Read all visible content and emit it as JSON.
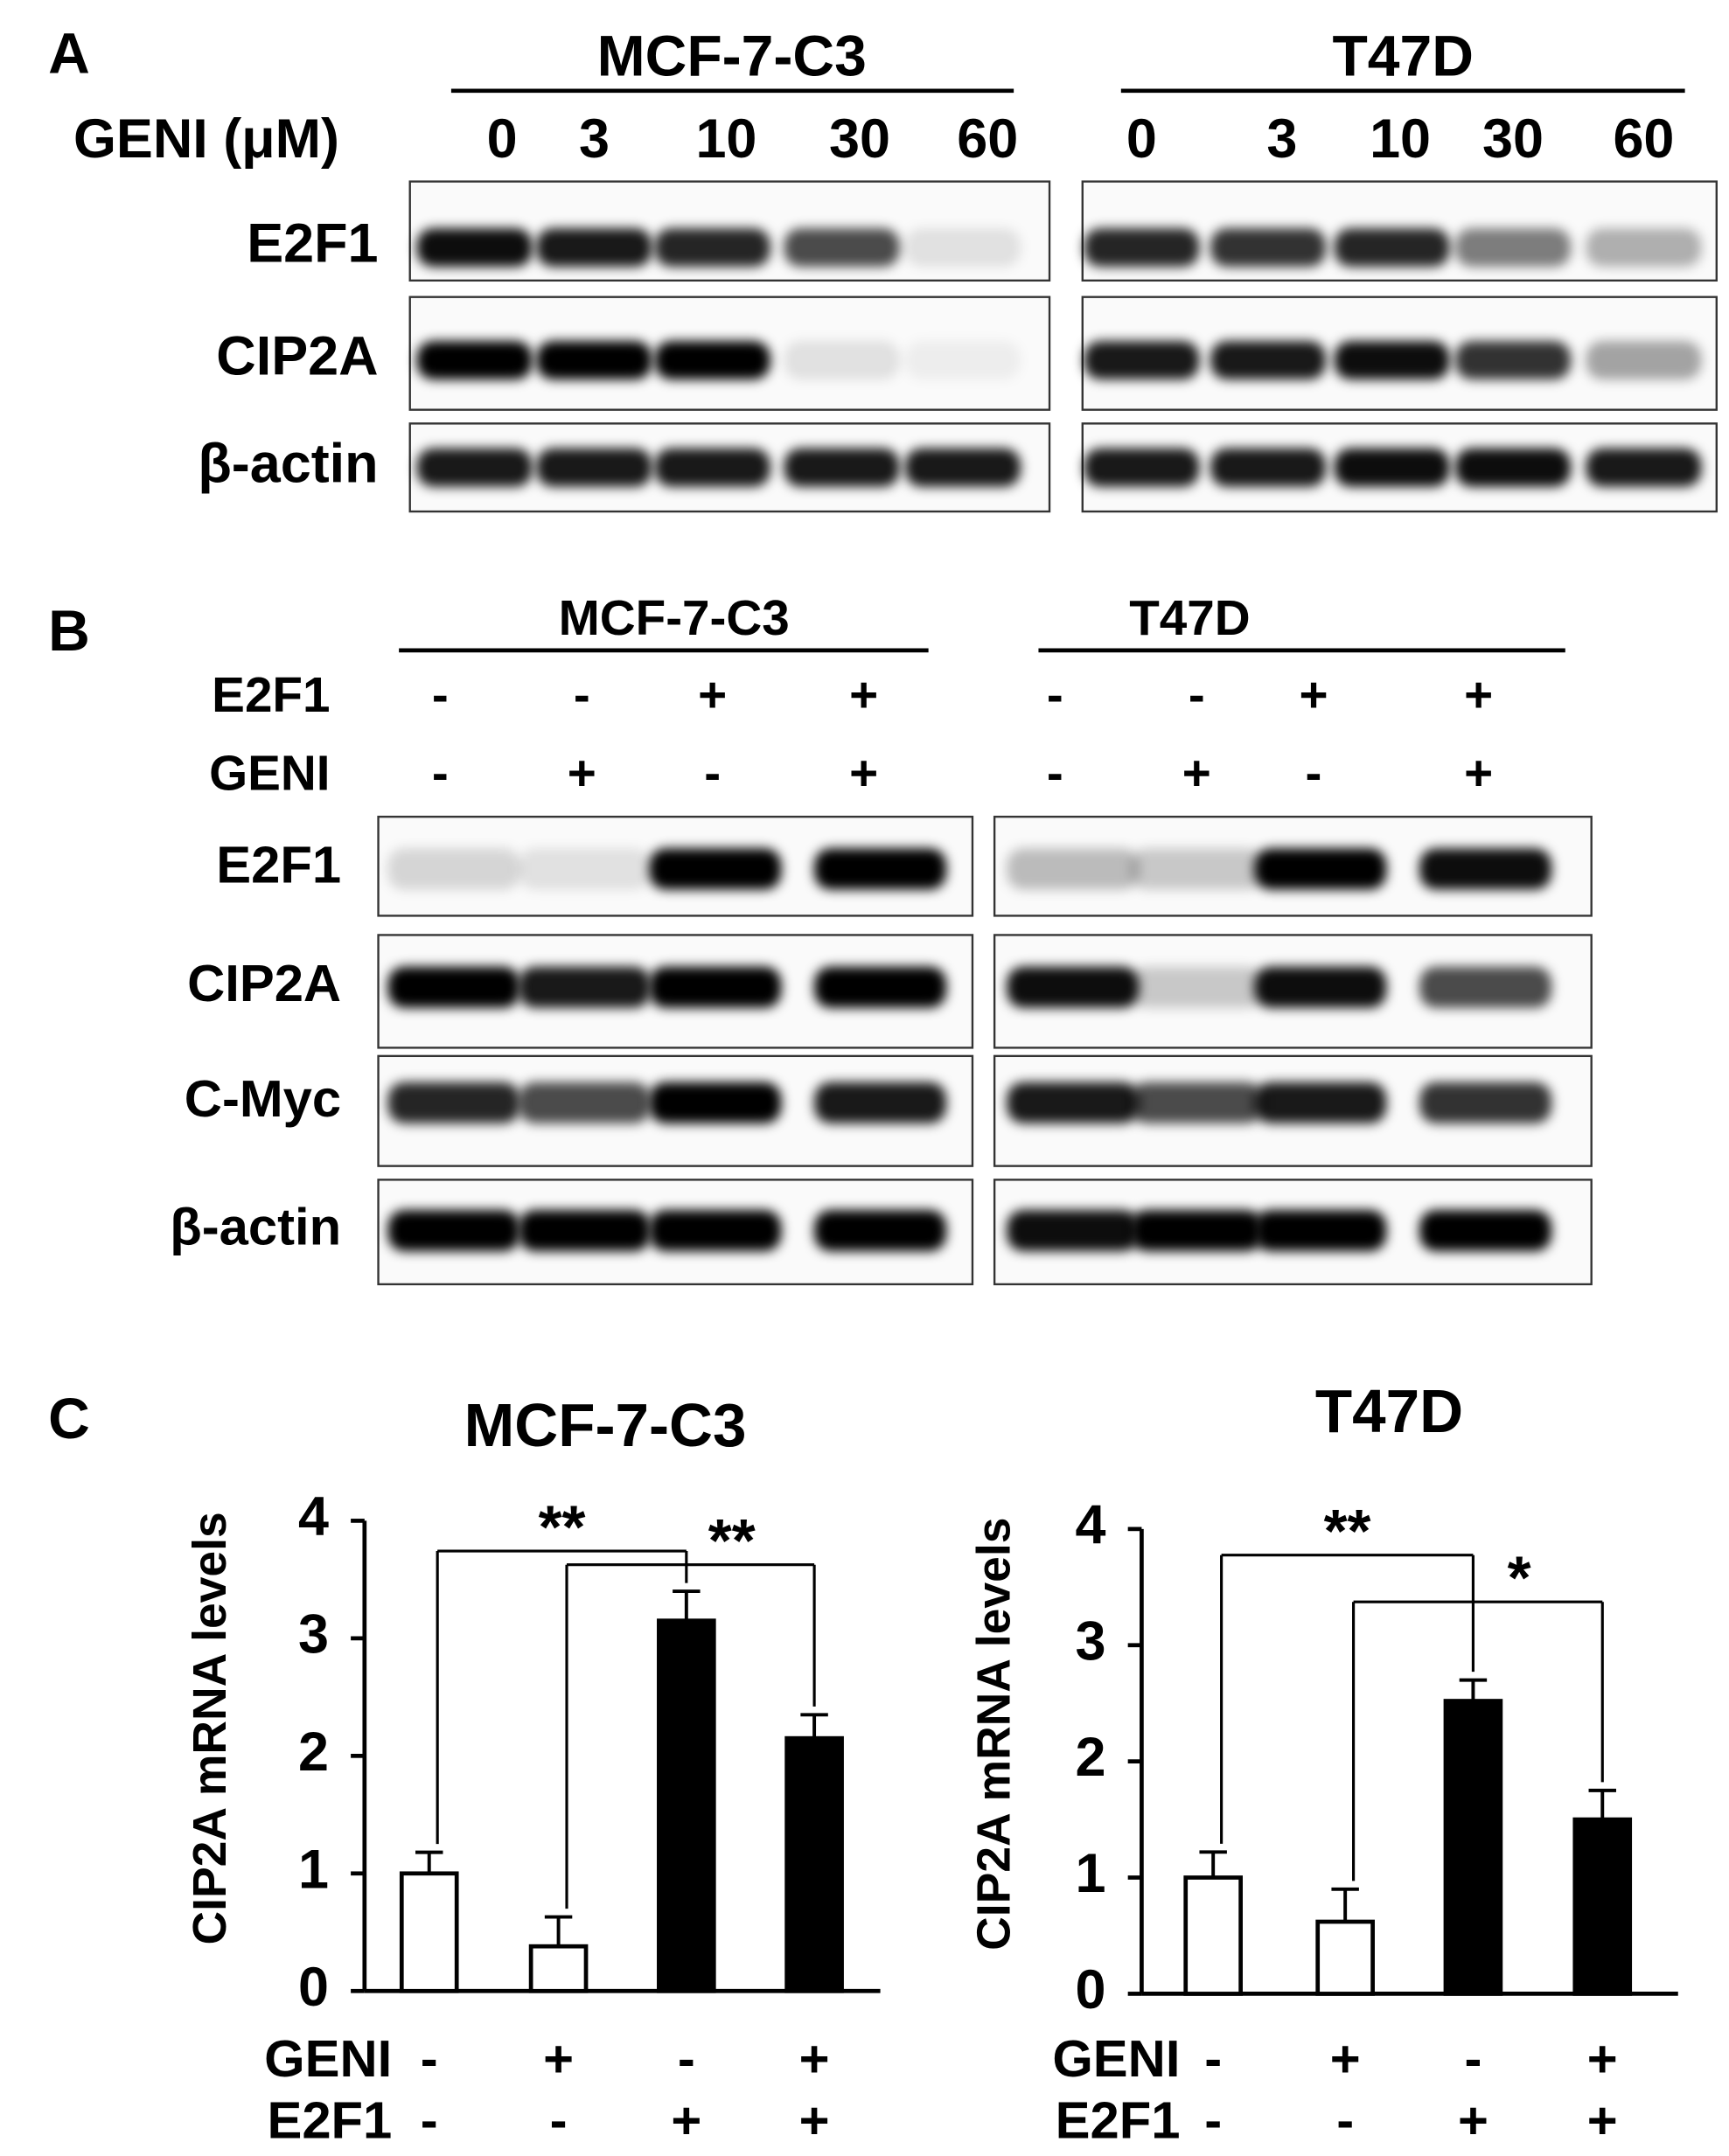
{
  "panels": [
    {
      "label": "A",
      "treatment": "GENI (μM)",
      "rows": [
        "E2F1",
        "CIP2A",
        "β-actin"
      ],
      "groups": [
        {
          "name": "MCF-7-C3",
          "lanes": [
            "0",
            "3",
            "10",
            "30",
            "60"
          ],
          "bands": [
            [
              0.95,
              0.9,
              0.85,
              0.7,
              0.1
            ],
            [
              1,
              1,
              1,
              0.1,
              0.05
            ],
            [
              0.9,
              0.9,
              0.9,
              0.9,
              0.9
            ]
          ]
        },
        {
          "name": "T47D",
          "lanes": [
            "0",
            "3",
            "10",
            "30",
            "60"
          ],
          "bands": [
            [
              0.85,
              0.8,
              0.85,
              0.5,
              0.3
            ],
            [
              0.9,
              0.9,
              0.95,
              0.8,
              0.35
            ],
            [
              0.9,
              0.9,
              0.95,
              0.95,
              0.9
            ]
          ]
        }
      ]
    },
    {
      "label": "B",
      "treatments": [
        "E2F1",
        "GENI"
      ],
      "rows": [
        "E2F1",
        "CIP2A",
        "C-Myc",
        "β-actin"
      ],
      "groups": [
        {
          "name": "MCF-7-C3",
          "conditions": [
            [
              "-",
              "-",
              "+",
              "+"
            ],
            [
              "-",
              "+",
              "-",
              "+"
            ]
          ],
          "bands": [
            [
              0.15,
              0.1,
              1,
              1
            ],
            [
              1,
              0.9,
              1,
              1
            ],
            [
              0.85,
              0.7,
              1,
              0.9
            ],
            [
              1,
              1,
              1,
              1
            ]
          ]
        },
        {
          "name": "T47D",
          "conditions": [
            [
              "-",
              "-",
              "+",
              "+"
            ],
            [
              "-",
              "+",
              "-",
              "+"
            ]
          ],
          "bands": [
            [
              0.25,
              0.2,
              1,
              0.95
            ],
            [
              0.95,
              0.2,
              0.95,
              0.7
            ],
            [
              0.9,
              0.7,
              0.9,
              0.8
            ],
            [
              0.95,
              1,
              1,
              1
            ]
          ]
        }
      ]
    },
    {
      "label": "C"
    }
  ],
  "chart_data": [
    {
      "type": "bar",
      "title": "MCF-7-C3",
      "y_label": "CIP2A mRNA levels",
      "values": [
        1.0,
        0.38,
        3.15,
        2.15
      ],
      "errors": [
        0.18,
        0.25,
        0.25,
        0.2
      ],
      "colors": [
        "#ffffff",
        "#ffffff",
        "#000000",
        "#000000"
      ],
      "conditions": [
        {
          "name": "GENI",
          "values": [
            "-",
            "+",
            "-",
            "+"
          ]
        },
        {
          "name": "E2F1",
          "values": [
            "-",
            "-",
            "+",
            "+"
          ]
        }
      ],
      "ylim": [
        0,
        4
      ],
      "yticks": [
        0,
        1,
        2,
        3,
        4
      ],
      "annotations": [
        {
          "text": "**",
          "from": 0,
          "to": 2
        },
        {
          "text": "**",
          "from": 1,
          "to": 3
        }
      ]
    },
    {
      "type": "bar",
      "title": "T47D",
      "y_label": "CIP2A mRNA levels",
      "values": [
        1.0,
        0.62,
        2.52,
        1.5
      ],
      "errors": [
        0.22,
        0.28,
        0.18,
        0.25
      ],
      "colors": [
        "#ffffff",
        "#ffffff",
        "#000000",
        "#000000"
      ],
      "conditions": [
        {
          "name": "GENI",
          "values": [
            "-",
            "+",
            "-",
            "+"
          ]
        },
        {
          "name": "E2F1",
          "values": [
            "-",
            "-",
            "+",
            "+"
          ]
        }
      ],
      "ylim": [
        0,
        4
      ],
      "yticks": [
        0,
        1,
        2,
        3,
        4
      ],
      "annotations": [
        {
          "text": "**",
          "from": 0,
          "to": 2
        },
        {
          "text": "*",
          "from": 1,
          "to": 3
        }
      ]
    }
  ]
}
